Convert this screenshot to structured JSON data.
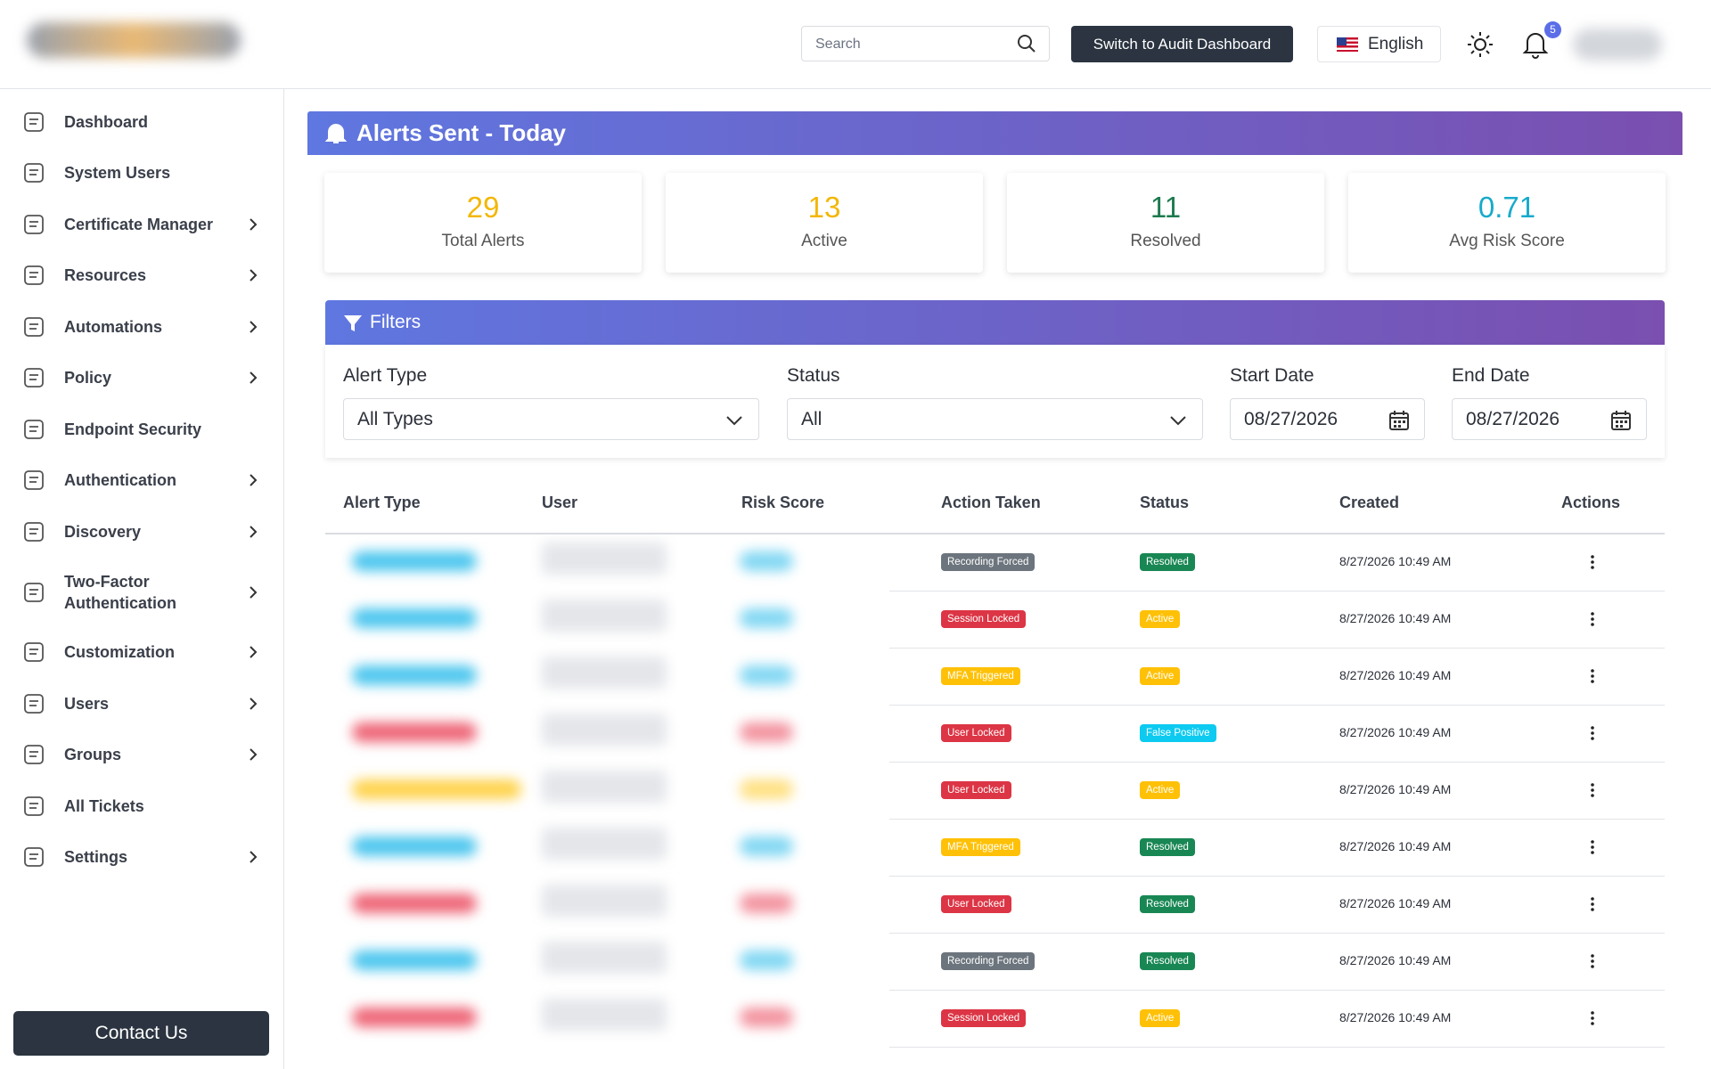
{
  "header": {
    "search_placeholder": "Search",
    "audit_button": "Switch to Audit Dashboard",
    "language": "English",
    "notification_count": 5
  },
  "sidebar": {
    "items": [
      {
        "label": "Dashboard",
        "expandable": false
      },
      {
        "label": "System Users",
        "expandable": false
      },
      {
        "label": "Certificate Manager",
        "expandable": true
      },
      {
        "label": "Resources",
        "expandable": true
      },
      {
        "label": "Automations",
        "expandable": true
      },
      {
        "label": "Policy",
        "expandable": true
      },
      {
        "label": "Endpoint Security",
        "expandable": false
      },
      {
        "label": "Authentication",
        "expandable": true
      },
      {
        "label": "Discovery",
        "expandable": true
      },
      {
        "label": "Two-Factor Authentication",
        "expandable": true
      },
      {
        "label": "Customization",
        "expandable": true
      },
      {
        "label": "Users",
        "expandable": true
      },
      {
        "label": "Groups",
        "expandable": true
      },
      {
        "label": "All Tickets",
        "expandable": false
      },
      {
        "label": "Settings",
        "expandable": true
      }
    ],
    "contact": "Contact Us"
  },
  "panel": {
    "title": "Alerts Sent - Today",
    "stats": [
      {
        "value": 29,
        "label": "Total Alerts",
        "color": "#f2b705"
      },
      {
        "value": 13,
        "label": "Active",
        "color": "#f2b705"
      },
      {
        "value": 11,
        "label": "Resolved",
        "color": "#1d7a4e"
      },
      {
        "value": 0.71,
        "label": "Avg Risk Score",
        "color": "#17aacb"
      }
    ]
  },
  "filters": {
    "title": "Filters",
    "fields": [
      {
        "label": "Alert Type",
        "value": "All Types"
      },
      {
        "label": "Status",
        "value": "All"
      },
      {
        "label": "Start Date",
        "value": "08/27/2026"
      },
      {
        "label": "End Date",
        "value": "08/27/2026"
      }
    ]
  },
  "table": {
    "columns": [
      "Alert Type",
      "User",
      "Risk Score",
      "Action Taken",
      "Status",
      "Created",
      "Actions"
    ],
    "rows": [
      {
        "type_color": "#4cc6ee",
        "action": "Recording Forced",
        "action_color": "#6c757d",
        "status": "Resolved",
        "status_color": "#198754",
        "created": "8/27/2026 10:49 AM"
      },
      {
        "type_color": "#4cc6ee",
        "action": "Session Locked",
        "action_color": "#dc3545",
        "status": "Active",
        "status_color": "#ffc107",
        "created": "8/27/2026 10:49 AM"
      },
      {
        "type_color": "#4cc6ee",
        "action": "MFA Triggered",
        "action_color": "#ffc107",
        "status": "Active",
        "status_color": "#ffc107",
        "created": "8/27/2026 10:49 AM"
      },
      {
        "type_color": "#ee6677",
        "action": "User Locked",
        "action_color": "#dc3545",
        "status": "False Positive",
        "status_color": "#0dcaf0",
        "created": "8/27/2026 10:49 AM"
      },
      {
        "type_color": "#ffd34d",
        "action": "User Locked",
        "action_color": "#dc3545",
        "status": "Active",
        "status_color": "#ffc107",
        "created": "8/27/2026 10:49 AM"
      },
      {
        "type_color": "#4cc6ee",
        "action": "MFA Triggered",
        "action_color": "#ffc107",
        "status": "Resolved",
        "status_color": "#198754",
        "created": "8/27/2026 10:49 AM"
      },
      {
        "type_color": "#ee6677",
        "action": "User Locked",
        "action_color": "#dc3545",
        "status": "Resolved",
        "status_color": "#198754",
        "created": "8/27/2026 10:49 AM"
      },
      {
        "type_color": "#4cc6ee",
        "action": "Recording Forced",
        "action_color": "#6c757d",
        "status": "Resolved",
        "status_color": "#198754",
        "created": "8/27/2026 10:49 AM"
      },
      {
        "type_color": "#ee6677",
        "action": "Session Locked",
        "action_color": "#dc3545",
        "status": "Active",
        "status_color": "#ffc107",
        "created": "8/27/2026 10:49 AM"
      }
    ]
  }
}
